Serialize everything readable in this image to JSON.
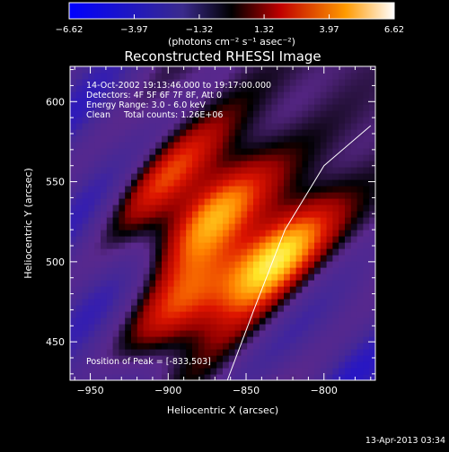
{
  "chart_data": {
    "type": "heatmap",
    "title": "Reconstructed RHESSI Image",
    "xlabel": "Heliocentric X (arcsec)",
    "ylabel": "Heliocentric Y (arcsec)",
    "xlim": [
      -963,
      -767
    ],
    "ylim": [
      426,
      622
    ],
    "x_ticks": [
      -950,
      -900,
      -850,
      -800
    ],
    "y_ticks": [
      450,
      500,
      550,
      600
    ],
    "colorbar": {
      "ticks": [
        "-6.62",
        "-3.97",
        "-1.32",
        "1.32",
        "3.97",
        "6.62"
      ],
      "range": [
        -6.62,
        6.62
      ],
      "unit_label": "(photons cm⁻² s⁻¹ asec⁻²)"
    },
    "info_lines": [
      "14-Oct-2002 19:13:46.000 to 19:17:00.000",
      "Detectors: 4F 5F 6F 7F 8F, Att 0",
      "Energy Range: 3.0 - 6.0 keV",
      "Clean     Total counts: 1.26E+06"
    ],
    "peak_label": "Position of Peak = [-833,503]",
    "peak": [
      -833,
      503
    ],
    "sources": [
      {
        "x": -833,
        "y": 503,
        "amp": 6.62
      },
      {
        "x": -875,
        "y": 530,
        "amp": 5.4
      },
      {
        "x": -890,
        "y": 470,
        "amp": 3.8
      },
      {
        "x": -905,
        "y": 555,
        "amp": 3.2
      }
    ],
    "limb": [
      [
        -862,
        426
      ],
      [
        -845,
        470
      ],
      [
        -825,
        520
      ],
      [
        -800,
        560
      ],
      [
        -770,
        585
      ]
    ],
    "timestamp": "13-Apr-2013 03:34"
  }
}
